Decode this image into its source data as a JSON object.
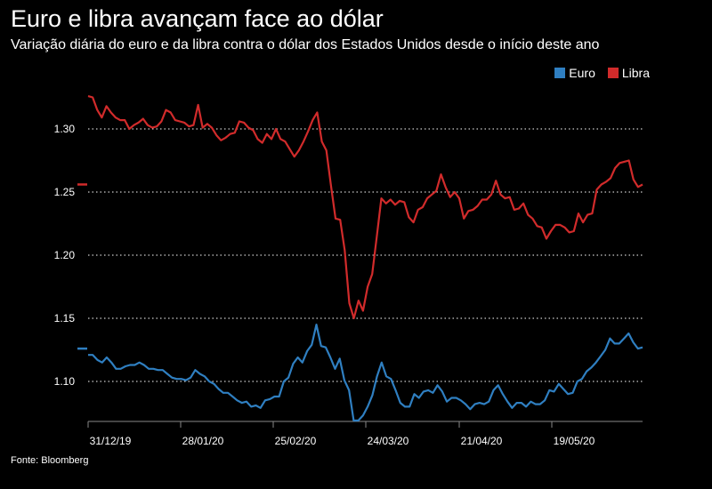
{
  "header": {
    "title": "Euro e libra avançam face ao dólar",
    "subtitle": "Variação diária do euro e da libra contra o dólar dos Estados Unidos desde o início deste ano"
  },
  "source": "Fonte: Bloomberg",
  "chart_data": {
    "type": "line",
    "title": "Euro e libra avançam face ao dólar",
    "subtitle": "Variação diária do euro e da libra contra o dólar dos Estados Unidos desde o início deste ano",
    "xlabel": "",
    "ylabel": "",
    "x_tick_labels": [
      "31/12/19",
      "28/01/20",
      "25/02/20",
      "24/03/20",
      "21/04/20",
      "19/05/20"
    ],
    "y_tick_labels": [
      "1.10",
      "1.15",
      "1.20",
      "1.25",
      "1.30"
    ],
    "y_ticks": [
      1.1,
      1.15,
      1.2,
      1.25,
      1.3
    ],
    "ylim": [
      1.067,
      1.335
    ],
    "grid": "horizontal dotted",
    "legend": "top-right",
    "series": [
      {
        "name": "Euro",
        "color": "#2f7fc1",
        "values": [
          1.121,
          1.121,
          1.117,
          1.115,
          1.119,
          1.115,
          1.11,
          1.11,
          1.112,
          1.113,
          1.113,
          1.115,
          1.113,
          1.11,
          1.11,
          1.109,
          1.109,
          1.106,
          1.103,
          1.102,
          1.102,
          1.101,
          1.103,
          1.109,
          1.106,
          1.104,
          1.1,
          1.098,
          1.094,
          1.091,
          1.091,
          1.088,
          1.085,
          1.083,
          1.084,
          1.08,
          1.081,
          1.079,
          1.085,
          1.086,
          1.088,
          1.088,
          1.1,
          1.103,
          1.114,
          1.119,
          1.115,
          1.124,
          1.129,
          1.145,
          1.128,
          1.127,
          1.119,
          1.11,
          1.118,
          1.101,
          1.093,
          1.069,
          1.069,
          1.073,
          1.08,
          1.089,
          1.104,
          1.115,
          1.104,
          1.102,
          1.093,
          1.083,
          1.08,
          1.08,
          1.09,
          1.087,
          1.092,
          1.093,
          1.091,
          1.097,
          1.092,
          1.084,
          1.087,
          1.087,
          1.085,
          1.082,
          1.078,
          1.082,
          1.083,
          1.082,
          1.084,
          1.093,
          1.097,
          1.09,
          1.084,
          1.079,
          1.083,
          1.083,
          1.08,
          1.084,
          1.082,
          1.082,
          1.085,
          1.093,
          1.092,
          1.098,
          1.094,
          1.09,
          1.091,
          1.1,
          1.102,
          1.108,
          1.111,
          1.115,
          1.12,
          1.125,
          1.134,
          1.13,
          1.13,
          1.134,
          1.138,
          1.131,
          1.126,
          1.127
        ]
      },
      {
        "name": "Libra",
        "color": "#d12b2b",
        "values": [
          1.326,
          1.325,
          1.315,
          1.309,
          1.318,
          1.313,
          1.309,
          1.307,
          1.307,
          1.3,
          1.303,
          1.305,
          1.308,
          1.303,
          1.301,
          1.302,
          1.306,
          1.315,
          1.313,
          1.307,
          1.306,
          1.305,
          1.302,
          1.303,
          1.319,
          1.301,
          1.304,
          1.301,
          1.295,
          1.291,
          1.293,
          1.296,
          1.297,
          1.306,
          1.305,
          1.301,
          1.299,
          1.292,
          1.289,
          1.296,
          1.292,
          1.3,
          1.292,
          1.29,
          1.284,
          1.278,
          1.283,
          1.29,
          1.298,
          1.307,
          1.313,
          1.29,
          1.283,
          1.255,
          1.229,
          1.228,
          1.204,
          1.162,
          1.15,
          1.164,
          1.156,
          1.175,
          1.185,
          1.215,
          1.245,
          1.241,
          1.244,
          1.24,
          1.243,
          1.242,
          1.23,
          1.226,
          1.236,
          1.238,
          1.245,
          1.248,
          1.251,
          1.264,
          1.254,
          1.246,
          1.25,
          1.245,
          1.229,
          1.235,
          1.236,
          1.239,
          1.244,
          1.244,
          1.248,
          1.259,
          1.248,
          1.245,
          1.246,
          1.236,
          1.237,
          1.241,
          1.232,
          1.229,
          1.223,
          1.222,
          1.213,
          1.219,
          1.224,
          1.224,
          1.222,
          1.218,
          1.219,
          1.233,
          1.226,
          1.232,
          1.233,
          1.252,
          1.256,
          1.258,
          1.261,
          1.269,
          1.273,
          1.274,
          1.275,
          1.26,
          1.254,
          1.256
        ]
      }
    ],
    "start_markers": [
      {
        "series": "Euro",
        "value": 1.126
      },
      {
        "series": "Libra",
        "value": 1.256
      }
    ]
  }
}
